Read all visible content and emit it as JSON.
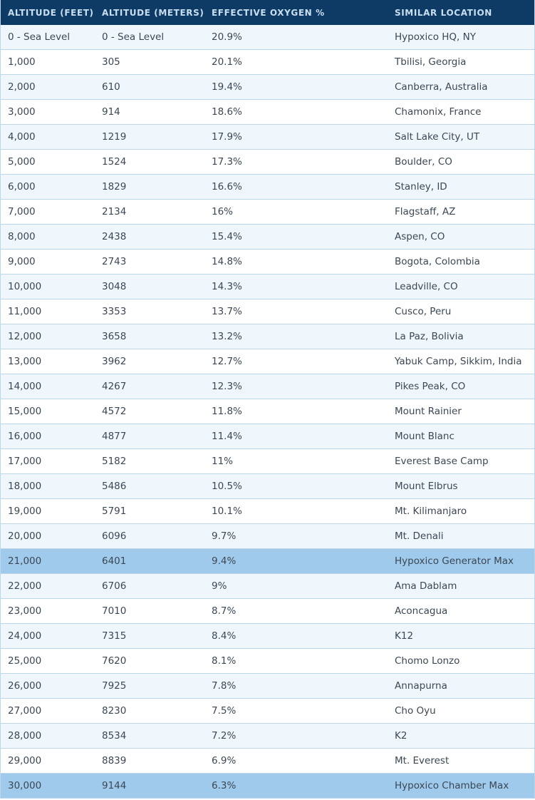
{
  "table": {
    "headers": [
      "ALTITUDE (FEET)",
      "ALTITUDE (METERS)",
      "EFFECTIVE OXYGEN %",
      "SIMILAR LOCATION"
    ],
    "highlight_color": "#9fcaeb",
    "header_color": "#0e3a66",
    "rows": [
      {
        "feet": "0 - Sea Level",
        "meters": "0 - Sea Level",
        "oxygen": "20.9%",
        "location": "Hypoxico HQ, NY",
        "highlight": false
      },
      {
        "feet": "1,000",
        "meters": "305",
        "oxygen": "20.1%",
        "location": "Tbilisi, Georgia",
        "highlight": false
      },
      {
        "feet": "2,000",
        "meters": "610",
        "oxygen": "19.4%",
        "location": "Canberra, Australia",
        "highlight": false
      },
      {
        "feet": "3,000",
        "meters": "914",
        "oxygen": "18.6%",
        "location": "Chamonix, France",
        "highlight": false
      },
      {
        "feet": "4,000",
        "meters": "1219",
        "oxygen": "17.9%",
        "location": "Salt Lake City, UT",
        "highlight": false
      },
      {
        "feet": "5,000",
        "meters": "1524",
        "oxygen": "17.3%",
        "location": "Boulder, CO",
        "highlight": false
      },
      {
        "feet": "6,000",
        "meters": "1829",
        "oxygen": "16.6%",
        "location": "Stanley, ID",
        "highlight": false
      },
      {
        "feet": "7,000",
        "meters": "2134",
        "oxygen": "16%",
        "location": "Flagstaff, AZ",
        "highlight": false
      },
      {
        "feet": "8,000",
        "meters": "2438",
        "oxygen": "15.4%",
        "location": "Aspen, CO",
        "highlight": false
      },
      {
        "feet": "9,000",
        "meters": "2743",
        "oxygen": "14.8%",
        "location": "Bogota, Colombia",
        "highlight": false
      },
      {
        "feet": "10,000",
        "meters": "3048",
        "oxygen": "14.3%",
        "location": "Leadville, CO",
        "highlight": false
      },
      {
        "feet": "11,000",
        "meters": "3353",
        "oxygen": "13.7%",
        "location": "Cusco, Peru",
        "highlight": false
      },
      {
        "feet": "12,000",
        "meters": "3658",
        "oxygen": "13.2%",
        "location": "La Paz, Bolivia",
        "highlight": false
      },
      {
        "feet": "13,000",
        "meters": "3962",
        "oxygen": "12.7%",
        "location": "Yabuk Camp, Sikkim, India",
        "highlight": false
      },
      {
        "feet": "14,000",
        "meters": "4267",
        "oxygen": "12.3%",
        "location": "Pikes Peak, CO",
        "highlight": false
      },
      {
        "feet": "15,000",
        "meters": "4572",
        "oxygen": "11.8%",
        "location": "Mount Rainier",
        "highlight": false
      },
      {
        "feet": "16,000",
        "meters": "4877",
        "oxygen": "11.4%",
        "location": "Mount Blanc",
        "highlight": false
      },
      {
        "feet": "17,000",
        "meters": "5182",
        "oxygen": "11%",
        "location": "Everest Base Camp",
        "highlight": false
      },
      {
        "feet": "18,000",
        "meters": "5486",
        "oxygen": "10.5%",
        "location": "Mount Elbrus",
        "highlight": false
      },
      {
        "feet": "19,000",
        "meters": "5791",
        "oxygen": "10.1%",
        "location": "Mt. Kilimanjaro",
        "highlight": false
      },
      {
        "feet": "20,000",
        "meters": "6096",
        "oxygen": "9.7%",
        "location": "Mt. Denali",
        "highlight": false
      },
      {
        "feet": "21,000",
        "meters": "6401",
        "oxygen": "9.4%",
        "location": "Hypoxico Generator Max",
        "highlight": true
      },
      {
        "feet": "22,000",
        "meters": "6706",
        "oxygen": "9%",
        "location": "Ama Dablam",
        "highlight": false
      },
      {
        "feet": "23,000",
        "meters": "7010",
        "oxygen": "8.7%",
        "location": "Aconcagua",
        "highlight": false
      },
      {
        "feet": "24,000",
        "meters": "7315",
        "oxygen": "8.4%",
        "location": "K12",
        "highlight": false
      },
      {
        "feet": "25,000",
        "meters": "7620",
        "oxygen": "8.1%",
        "location": "Chomo Lonzo",
        "highlight": false
      },
      {
        "feet": "26,000",
        "meters": "7925",
        "oxygen": "7.8%",
        "location": "Annapurna",
        "highlight": false
      },
      {
        "feet": "27,000",
        "meters": "8230",
        "oxygen": "7.5%",
        "location": "Cho Oyu",
        "highlight": false
      },
      {
        "feet": "28,000",
        "meters": "8534",
        "oxygen": "7.2%",
        "location": "K2",
        "highlight": false
      },
      {
        "feet": "29,000",
        "meters": "8839",
        "oxygen": "6.9%",
        "location": "Mt. Everest",
        "highlight": false
      },
      {
        "feet": "30,000",
        "meters": "9144",
        "oxygen": "6.3%",
        "location": "Hypoxico Chamber Max",
        "highlight": true
      }
    ]
  }
}
